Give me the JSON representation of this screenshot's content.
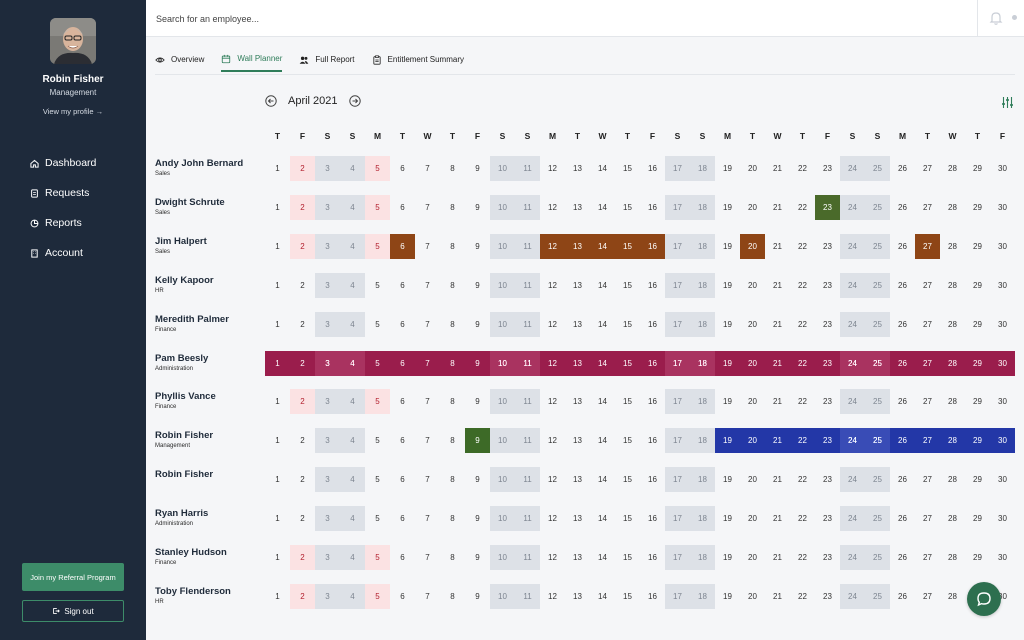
{
  "profile": {
    "name": "Robin Fisher",
    "role": "Management",
    "view_link": "View my profile →"
  },
  "nav": [
    {
      "label": "Dashboard",
      "icon": "home-icon"
    },
    {
      "label": "Requests",
      "icon": "document-icon"
    },
    {
      "label": "Reports",
      "icon": "pie-chart-icon"
    },
    {
      "label": "Account",
      "icon": "building-icon"
    }
  ],
  "referral_label": "Join my Referral Program",
  "signout_label": "Sign out",
  "search": {
    "placeholder": "Search for an employee..."
  },
  "tabs": [
    {
      "label": "Overview",
      "icon": "eye-icon",
      "active": false
    },
    {
      "label": "Wall Planner",
      "icon": "calendar-icon",
      "active": true
    },
    {
      "label": "Full Report",
      "icon": "users-icon",
      "active": false
    },
    {
      "label": "Entitlement Summary",
      "icon": "clipboard-icon",
      "active": false
    }
  ],
  "calendar": {
    "month_label": "April 2021",
    "weekday_letters": [
      "T",
      "F",
      "S",
      "S",
      "M",
      "T",
      "W",
      "T",
      "F",
      "S",
      "S",
      "M",
      "T",
      "W",
      "T",
      "F",
      "S",
      "S",
      "M",
      "T",
      "W",
      "T",
      "F",
      "S",
      "S",
      "M",
      "T",
      "W",
      "T",
      "F"
    ],
    "weekend_days": [
      3,
      4,
      10,
      11,
      17,
      18,
      24,
      25
    ],
    "public_holidays": [
      2,
      5
    ],
    "employees": [
      {
        "name": "Andy John Bernard",
        "dept": "Sales",
        "holidays_shown": true,
        "absences": []
      },
      {
        "name": "Dwight Schrute",
        "dept": "Sales",
        "holidays_shown": true,
        "absences": [
          {
            "days": [
              23
            ],
            "color": "#4a6a2a"
          }
        ]
      },
      {
        "name": "Jim Halpert",
        "dept": "Sales",
        "holidays_shown": true,
        "absences": [
          {
            "days": [
              6
            ],
            "color": "#8e4516"
          },
          {
            "days": [
              12,
              13,
              14,
              15,
              16
            ],
            "color": "#8e4516"
          },
          {
            "days": [
              20
            ],
            "color": "#8e4516"
          },
          {
            "days": [
              27
            ],
            "color": "#8e4516"
          }
        ]
      },
      {
        "name": "Kelly Kapoor",
        "dept": "HR",
        "holidays_shown": false,
        "absences": []
      },
      {
        "name": "Meredith Palmer",
        "dept": "Finance",
        "holidays_shown": false,
        "absences": []
      },
      {
        "name": "Pam Beesly",
        "dept": "Administration",
        "holidays_shown": false,
        "absences": [
          {
            "days": [
              1,
              2,
              3,
              4,
              5,
              6,
              7,
              8,
              9,
              10,
              11,
              12,
              13,
              14,
              15,
              16,
              17,
              18,
              19,
              20,
              21,
              22,
              23,
              24,
              25,
              26,
              27,
              28,
              29,
              30
            ],
            "color": "#9a1d4c"
          }
        ]
      },
      {
        "name": "Phyllis Vance",
        "dept": "Finance",
        "holidays_shown": true,
        "absences": []
      },
      {
        "name": "Robin Fisher",
        "dept": "Management",
        "holidays_shown": false,
        "absences": [
          {
            "days": [
              9
            ],
            "color": "#3d6a27"
          },
          {
            "days": [
              19,
              20,
              21,
              22,
              23,
              24,
              25,
              26,
              27,
              28,
              29,
              30
            ],
            "color": "#2337a7"
          }
        ]
      },
      {
        "name": "Robin Fisher",
        "dept": "",
        "holidays_shown": false,
        "absences": []
      },
      {
        "name": "Ryan Harris",
        "dept": "Administration",
        "holidays_shown": false,
        "absences": []
      },
      {
        "name": "Stanley Hudson",
        "dept": "Finance",
        "holidays_shown": true,
        "absences": []
      },
      {
        "name": "Toby Flenderson",
        "dept": "HR",
        "holidays_shown": true,
        "absences": []
      }
    ]
  },
  "colors": {
    "sidebar": "#1e2a3b",
    "accent": "#2f7d5a",
    "weekend": "#dde1e7",
    "holiday": "#fbe2e3"
  }
}
